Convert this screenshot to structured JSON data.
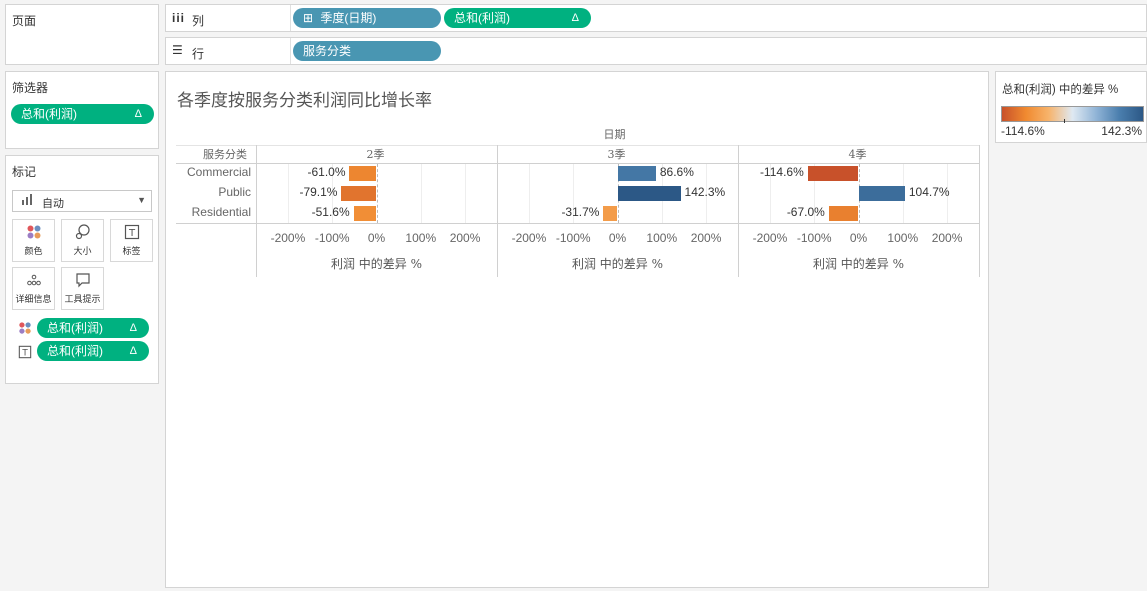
{
  "pages_panel": {
    "title": "页面"
  },
  "filters_panel": {
    "title": "筛选器",
    "pill": {
      "label": "总和(利润)",
      "delta": "Δ"
    }
  },
  "marks_panel": {
    "title": "标记",
    "mark_type": "自动",
    "buttons": [
      {
        "label": "颜色",
        "icon": "color-icon"
      },
      {
        "label": "大小",
        "icon": "size-icon"
      },
      {
        "label": "标签",
        "icon": "label-icon"
      },
      {
        "label": "详细信息",
        "icon": "detail-icon"
      },
      {
        "label": "工具提示",
        "icon": "tooltip-icon"
      }
    ],
    "encodings": [
      {
        "type": "color",
        "label": "总和(利润)",
        "delta": "Δ"
      },
      {
        "type": "label",
        "label": "总和(利润)",
        "delta": "Δ"
      }
    ]
  },
  "shelves": {
    "columns": {
      "label": "列",
      "pills": [
        {
          "label": "季度(日期)",
          "prefix": "⊞",
          "color": "blue"
        },
        {
          "label": "总和(利润)",
          "delta": "Δ",
          "color": "green"
        }
      ]
    },
    "rows": {
      "label": "行",
      "pills": [
        {
          "label": "服务分类",
          "color": "blue"
        }
      ]
    }
  },
  "legend": {
    "title": "总和(利润) 中的差异 %",
    "min_label": "-114.6%",
    "max_label": "142.3%",
    "colors": [
      "#c8512a",
      "#f08a30",
      "#f7b36b",
      "#dfe9f2",
      "#8fb3d6",
      "#4b7fae",
      "#2c5886"
    ]
  },
  "chart_data": {
    "type": "bar",
    "title": "各季度按服务分类利润同比增长率",
    "column_header": "日期",
    "row_header": "服务分类",
    "categories": [
      "Commercial",
      "Public",
      "Residential"
    ],
    "panels": [
      {
        "name": "2季",
        "values": [
          -61.0,
          -79.1,
          -51.6
        ],
        "labels": [
          "-61.0%",
          "-79.1%",
          "-51.6%"
        ]
      },
      {
        "name": "3季",
        "values": [
          86.6,
          142.3,
          -31.7
        ],
        "labels": [
          "86.6%",
          "142.3%",
          "-31.7%"
        ]
      },
      {
        "name": "4季",
        "values": [
          -114.6,
          104.7,
          -67.0
        ],
        "labels": [
          "-114.6%",
          "104.7%",
          "-67.0%"
        ]
      }
    ],
    "x_ticks": [
      "-200%",
      "-100%",
      "0%",
      "100%",
      "200%"
    ],
    "tick_values": [
      -200,
      -100,
      0,
      100,
      200
    ],
    "xlim": [
      -245,
      245
    ],
    "xlabel": "利润 中的差异 %",
    "color_range": [
      -114.6,
      142.3
    ]
  }
}
